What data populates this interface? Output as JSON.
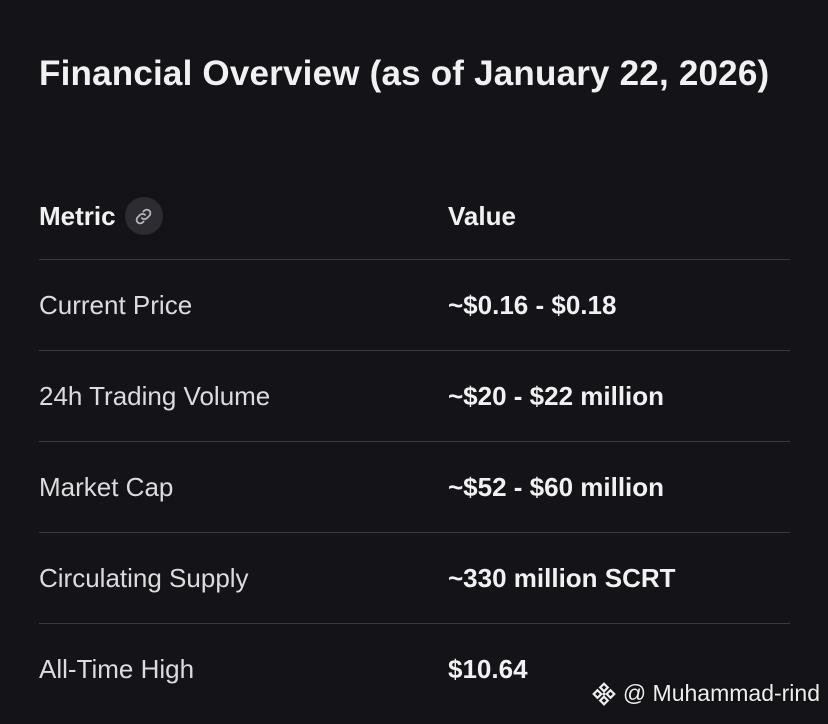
{
  "title": "Financial Overview (as of January 22, 2026)",
  "table": {
    "headers": {
      "metric": "Metric",
      "value": "Value"
    },
    "rows": [
      {
        "metric": "Current Price",
        "value": "~$0.16 - $0.18"
      },
      {
        "metric": "24h Trading Volume",
        "value": "~$20 - $22 million"
      },
      {
        "metric": "Market Cap",
        "value": "~$52 - $60 million"
      },
      {
        "metric": "Circulating Supply",
        "value": "~330 million SCRT"
      },
      {
        "metric": "All-Time High",
        "value": "$10.64"
      }
    ]
  },
  "watermark": {
    "text": "@ Muhammad-rind",
    "logo_icon": "binance-square-icon"
  },
  "icons": {
    "header_link": "link-icon"
  },
  "colors": {
    "background": "#141418",
    "text_primary": "#f1f1f3",
    "text_secondary": "#dcdcdf",
    "divider": "#3a3a40",
    "chip": "#2c2c32"
  }
}
